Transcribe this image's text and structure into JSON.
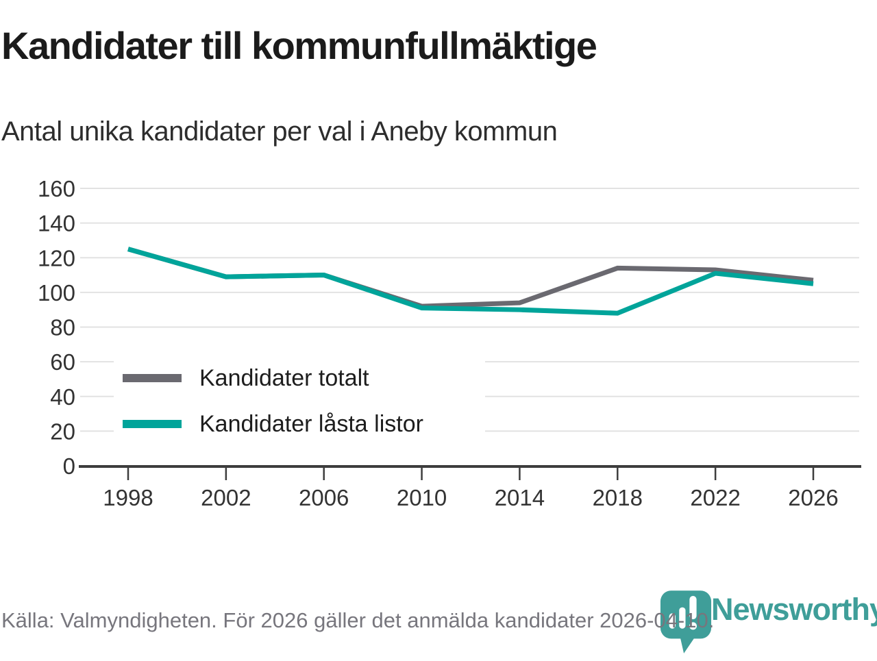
{
  "page": {
    "title": "Kandidater till kommunfullmäktige",
    "subtitle": "Antal unika kandidater per val i Aneby kommun",
    "source": "Källa: Valmyndigheten. För 2026 gäller det anmälda kandidater 2026-04-10."
  },
  "logo": {
    "wordmark": "Newsworthy",
    "icon": "newsworthy-pin-barchart-icon",
    "color": "#3f9e99"
  },
  "legend": {
    "items": [
      {
        "label": "Kandidater totalt"
      },
      {
        "label": "Kandidater låsta listor"
      }
    ]
  },
  "colors": {
    "grid": "#e2e2e2",
    "axis": "#3d3d3d",
    "tick_label": "#333333",
    "series_total": "#6a6970",
    "series_locked": "#00a49a"
  },
  "chart_data": {
    "type": "line",
    "title": "Kandidater till kommunfullmäktige",
    "subtitle": "Antal unika kandidater per val i Aneby kommun",
    "x": [
      1998,
      2002,
      2006,
      2010,
      2014,
      2018,
      2022,
      2026
    ],
    "series": [
      {
        "name": "Kandidater totalt",
        "color": "#6a6970",
        "values": [
          125,
          109,
          110,
          92,
          94,
          114,
          113,
          107
        ]
      },
      {
        "name": "Kandidater låsta listor",
        "color": "#00a49a",
        "values": [
          125,
          109,
          110,
          91,
          90,
          88,
          111,
          105
        ]
      }
    ],
    "xlabel": "",
    "ylabel": "",
    "ylim": [
      0,
      160
    ],
    "ytick_step": 20,
    "grid": "horizontal-light",
    "legend_position": "inside-bottom-left"
  }
}
